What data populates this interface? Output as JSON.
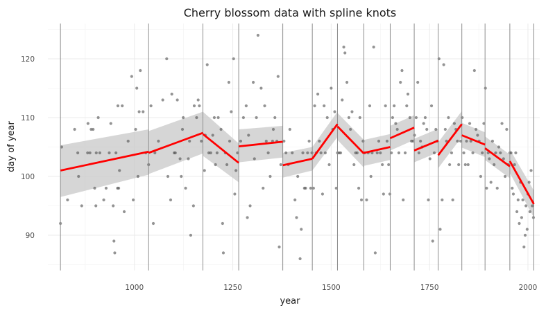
{
  "chart_data": {
    "type": "scatter",
    "title": "Cherry blossom data with spline knots",
    "xlabel": "year",
    "ylabel": "day of year",
    "xlim": [
      780,
      2030
    ],
    "ylim": [
      84,
      126
    ],
    "x_ticks": [
      1000,
      1250,
      1500,
      1750,
      2000
    ],
    "y_ticks": [
      90,
      100,
      110,
      120
    ],
    "grid": true,
    "colors": {
      "points": "#4d4d4d",
      "fit_line": "#ff0000",
      "ribbon": "#c8c8c8",
      "knot_line": "#8c8c8c"
    },
    "knots": [
      812,
      1036,
      1174,
      1265,
      1377,
      1452,
      1516,
      1583,
      1650,
      1711,
      1772,
      1832,
      1891,
      1954,
      2015
    ],
    "fit": [
      {
        "x": [
          812,
          1036
        ],
        "y": [
          101.0,
          104.2
        ],
        "lo": [
          96.5,
          100.3
        ],
        "hi": [
          105.3,
          108.0
        ]
      },
      {
        "x": [
          1036,
          1174
        ],
        "y": [
          104.0,
          107.4
        ],
        "lo": [
          100.4,
          103.9
        ],
        "hi": [
          107.7,
          111.0
        ]
      },
      {
        "x": [
          1174,
          1265
        ],
        "y": [
          107.2,
          102.3
        ],
        "lo": [
          103.5,
          99.0
        ],
        "hi": [
          111.0,
          105.6
        ]
      },
      {
        "x": [
          1265,
          1377
        ],
        "y": [
          105.1,
          105.9
        ],
        "lo": [
          102.4,
          103.2
        ],
        "hi": [
          108.0,
          108.6
        ]
      },
      {
        "x": [
          1377,
          1452
        ],
        "y": [
          101.9,
          103.0
        ],
        "lo": [
          99.8,
          101.0
        ],
        "hi": [
          104.0,
          105.0
        ]
      },
      {
        "x": [
          1452,
          1516
        ],
        "y": [
          103.0,
          108.9
        ],
        "lo": [
          101.0,
          106.7
        ],
        "hi": [
          105.0,
          111.0
        ]
      },
      {
        "x": [
          1516,
          1583
        ],
        "y": [
          108.5,
          103.9
        ],
        "lo": [
          106.2,
          101.5
        ],
        "hi": [
          110.8,
          106.2
        ]
      },
      {
        "x": [
          1583,
          1650
        ],
        "y": [
          104.0,
          105.0
        ],
        "lo": [
          101.8,
          102.8
        ],
        "hi": [
          106.2,
          107.2
        ]
      },
      {
        "x": [
          1650,
          1711
        ],
        "y": [
          106.5,
          108.3
        ],
        "lo": [
          104.4,
          106.2
        ],
        "hi": [
          108.6,
          110.4
        ]
      },
      {
        "x": [
          1711,
          1772
        ],
        "y": [
          104.4,
          106.1
        ],
        "lo": [
          102.4,
          104.1
        ],
        "hi": [
          106.4,
          108.1
        ]
      },
      {
        "x": [
          1772,
          1832
        ],
        "y": [
          103.6,
          108.9
        ],
        "lo": [
          101.4,
          106.7
        ],
        "hi": [
          105.8,
          111.1
        ]
      },
      {
        "x": [
          1832,
          1891
        ],
        "y": [
          107.0,
          105.4
        ],
        "lo": [
          104.9,
          103.3
        ],
        "hi": [
          109.1,
          107.5
        ]
      },
      {
        "x": [
          1891,
          1954
        ],
        "y": [
          104.8,
          101.7
        ],
        "lo": [
          102.8,
          99.7
        ],
        "hi": [
          106.8,
          103.7
        ]
      },
      {
        "x": [
          1954,
          2015
        ],
        "y": [
          102.6,
          95.3
        ],
        "lo": [
          100.6,
          93.0
        ],
        "hi": [
          104.6,
          97.6
        ]
      }
    ],
    "points": [
      [
        812,
        92
      ],
      [
        815,
        105
      ],
      [
        830,
        96
      ],
      [
        848,
        108
      ],
      [
        856,
        104
      ],
      [
        858,
        100
      ],
      [
        866,
        95
      ],
      [
        881,
        104
      ],
      [
        882,
        109
      ],
      [
        887,
        104
      ],
      [
        890,
        108
      ],
      [
        895,
        108
      ],
      [
        899,
        98
      ],
      [
        902,
        95
      ],
      [
        903,
        104
      ],
      [
        908,
        110
      ],
      [
        912,
        104
      ],
      [
        922,
        96
      ],
      [
        928,
        98
      ],
      [
        936,
        104
      ],
      [
        940,
        109
      ],
      [
        946,
        95
      ],
      [
        948,
        89
      ],
      [
        950,
        87
      ],
      [
        953,
        104
      ],
      [
        957,
        98
      ],
      [
        958,
        112
      ],
      [
        960,
        98
      ],
      [
        962,
        101
      ],
      [
        969,
        112
      ],
      [
        974,
        94
      ],
      [
        984,
        106
      ],
      [
        993,
        117
      ],
      [
        997,
        96
      ],
      [
        1003,
        108
      ],
      [
        1006,
        115
      ],
      [
        1009,
        100
      ],
      [
        1012,
        111
      ],
      [
        1015,
        118
      ],
      [
        1022,
        111
      ],
      [
        1029,
        104
      ],
      [
        1036,
        102
      ],
      [
        1042,
        112
      ],
      [
        1048,
        92
      ],
      [
        1052,
        104
      ],
      [
        1061,
        106
      ],
      [
        1072,
        113
      ],
      [
        1082,
        120
      ],
      [
        1085,
        100
      ],
      [
        1092,
        96
      ],
      [
        1095,
        114
      ],
      [
        1101,
        104
      ],
      [
        1104,
        104
      ],
      [
        1109,
        113
      ],
      [
        1116,
        103
      ],
      [
        1119,
        100
      ],
      [
        1122,
        108
      ],
      [
        1124,
        110
      ],
      [
        1130,
        98
      ],
      [
        1137,
        103
      ],
      [
        1140,
        106
      ],
      [
        1143,
        90
      ],
      [
        1150,
        95
      ],
      [
        1152,
        112
      ],
      [
        1158,
        110
      ],
      [
        1162,
        113
      ],
      [
        1165,
        112
      ],
      [
        1170,
        106
      ],
      [
        1178,
        101
      ],
      [
        1180,
        107
      ],
      [
        1185,
        119
      ],
      [
        1189,
        104
      ],
      [
        1194,
        104
      ],
      [
        1199,
        107
      ],
      [
        1203,
        110
      ],
      [
        1206,
        102
      ],
      [
        1210,
        104
      ],
      [
        1213,
        110
      ],
      [
        1220,
        108
      ],
      [
        1224,
        92
      ],
      [
        1226,
        87
      ],
      [
        1231,
        104
      ],
      [
        1235,
        102
      ],
      [
        1240,
        116
      ],
      [
        1242,
        106
      ],
      [
        1246,
        111
      ],
      [
        1252,
        120
      ],
      [
        1255,
        97
      ],
      [
        1258,
        101
      ],
      [
        1262,
        104
      ],
      [
        1270,
        106
      ],
      [
        1277,
        110
      ],
      [
        1284,
        112
      ],
      [
        1287,
        93
      ],
      [
        1290,
        107
      ],
      [
        1294,
        95
      ],
      [
        1302,
        116
      ],
      [
        1305,
        103
      ],
      [
        1310,
        110
      ],
      [
        1314,
        124
      ],
      [
        1322,
        115
      ],
      [
        1327,
        98
      ],
      [
        1331,
        112
      ],
      [
        1335,
        106
      ],
      [
        1340,
        104
      ],
      [
        1345,
        100
      ],
      [
        1351,
        106
      ],
      [
        1353,
        108
      ],
      [
        1357,
        110
      ],
      [
        1362,
        106
      ],
      [
        1365,
        117
      ],
      [
        1368,
        88
      ],
      [
        1372,
        102
      ],
      [
        1380,
        106
      ],
      [
        1385,
        104
      ],
      [
        1391,
        102
      ],
      [
        1395,
        108
      ],
      [
        1401,
        104
      ],
      [
        1408,
        96
      ],
      [
        1412,
        93
      ],
      [
        1415,
        100
      ],
      [
        1421,
        86
      ],
      [
        1424,
        91
      ],
      [
        1428,
        104
      ],
      [
        1432,
        98
      ],
      [
        1435,
        98
      ],
      [
        1440,
        104
      ],
      [
        1444,
        106
      ],
      [
        1448,
        98
      ],
      [
        1451,
        104
      ],
      [
        1455,
        98
      ],
      [
        1458,
        112
      ],
      [
        1462,
        104
      ],
      [
        1466,
        114
      ],
      [
        1470,
        106
      ],
      [
        1474,
        104
      ],
      [
        1478,
        97
      ],
      [
        1482,
        112
      ],
      [
        1485,
        104
      ],
      [
        1490,
        110
      ],
      [
        1495,
        102
      ],
      [
        1500,
        115
      ],
      [
        1504,
        108
      ],
      [
        1509,
        111
      ],
      [
        1513,
        98
      ],
      [
        1516,
        104
      ],
      [
        1520,
        104
      ],
      [
        1524,
        104
      ],
      [
        1528,
        113
      ],
      [
        1532,
        122
      ],
      [
        1535,
        121
      ],
      [
        1540,
        116
      ],
      [
        1545,
        110
      ],
      [
        1549,
        108
      ],
      [
        1553,
        111
      ],
      [
        1558,
        102
      ],
      [
        1562,
        104
      ],
      [
        1566,
        104
      ],
      [
        1570,
        98
      ],
      [
        1573,
        110
      ],
      [
        1577,
        96
      ],
      [
        1581,
        106
      ],
      [
        1585,
        104
      ],
      [
        1590,
        96
      ],
      [
        1594,
        104
      ],
      [
        1598,
        112
      ],
      [
        1601,
        100
      ],
      [
        1604,
        104
      ],
      [
        1608,
        122
      ],
      [
        1612,
        87
      ],
      [
        1617,
        104
      ],
      [
        1621,
        106
      ],
      [
        1625,
        104
      ],
      [
        1630,
        102
      ],
      [
        1633,
        97
      ],
      [
        1638,
        112
      ],
      [
        1642,
        106
      ],
      [
        1646,
        102
      ],
      [
        1649,
        97
      ],
      [
        1653,
        104
      ],
      [
        1656,
        110
      ],
      [
        1660,
        112
      ],
      [
        1664,
        109
      ],
      [
        1668,
        108
      ],
      [
        1672,
        104
      ],
      [
        1676,
        116
      ],
      [
        1680,
        118
      ],
      [
        1683,
        96
      ],
      [
        1688,
        104
      ],
      [
        1692,
        112
      ],
      [
        1695,
        114
      ],
      [
        1700,
        110
      ],
      [
        1704,
        106
      ],
      [
        1708,
        106
      ],
      [
        1712,
        107
      ],
      [
        1716,
        110
      ],
      [
        1720,
        116
      ],
      [
        1723,
        104
      ],
      [
        1727,
        106
      ],
      [
        1731,
        105
      ],
      [
        1735,
        109
      ],
      [
        1739,
        110
      ],
      [
        1743,
        108
      ],
      [
        1747,
        96
      ],
      [
        1751,
        103
      ],
      [
        1755,
        112
      ],
      [
        1758,
        89
      ],
      [
        1762,
        104
      ],
      [
        1766,
        108
      ],
      [
        1770,
        106
      ],
      [
        1774,
        120
      ],
      [
        1777,
        91
      ],
      [
        1782,
        96
      ],
      [
        1786,
        119
      ],
      [
        1790,
        108
      ],
      [
        1793,
        106
      ],
      [
        1798,
        110
      ],
      [
        1801,
        102
      ],
      [
        1806,
        104
      ],
      [
        1809,
        96
      ],
      [
        1813,
        109
      ],
      [
        1817,
        108
      ],
      [
        1821,
        106
      ],
      [
        1824,
        102
      ],
      [
        1829,
        106
      ],
      [
        1833,
        110
      ],
      [
        1837,
        104
      ],
      [
        1841,
        102
      ],
      [
        1844,
        106
      ],
      [
        1848,
        102
      ],
      [
        1852,
        109
      ],
      [
        1855,
        106
      ],
      [
        1860,
        104
      ],
      [
        1864,
        118
      ],
      [
        1868,
        108
      ],
      [
        1872,
        107
      ],
      [
        1876,
        106
      ],
      [
        1880,
        100
      ],
      [
        1884,
        104
      ],
      [
        1888,
        109
      ],
      [
        1892,
        115
      ],
      [
        1895,
        98
      ],
      [
        1899,
        104
      ],
      [
        1902,
        103
      ],
      [
        1906,
        99
      ],
      [
        1910,
        106
      ],
      [
        1914,
        102
      ],
      [
        1918,
        104
      ],
      [
        1922,
        98
      ],
      [
        1926,
        105
      ],
      [
        1930,
        104
      ],
      [
        1934,
        109
      ],
      [
        1938,
        103
      ],
      [
        1942,
        100
      ],
      [
        1946,
        108
      ],
      [
        1950,
        102
      ],
      [
        1954,
        104
      ],
      [
        1957,
        104
      ],
      [
        1960,
        98
      ],
      [
        1963,
        97
      ],
      [
        1966,
        102
      ],
      [
        1969,
        104
      ],
      [
        1972,
        94
      ],
      [
        1975,
        96
      ],
      [
        1978,
        92
      ],
      [
        1981,
        99
      ],
      [
        1984,
        93
      ],
      [
        1987,
        96
      ],
      [
        1990,
        88
      ],
      [
        1993,
        90
      ],
      [
        1995,
        95
      ],
      [
        1998,
        91
      ],
      [
        2000,
        97
      ],
      [
        2003,
        99
      ],
      [
        2005,
        94
      ],
      [
        2008,
        101
      ],
      [
        2011,
        95
      ],
      [
        2014,
        93
      ]
    ]
  }
}
